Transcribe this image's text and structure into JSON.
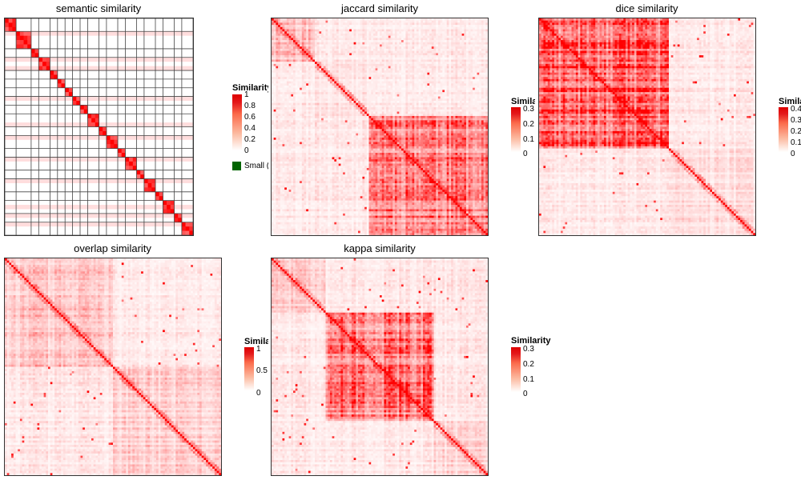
{
  "chart_data": [
    {
      "type": "heatmap",
      "title": "semantic similarity",
      "legend": {
        "title": "Similarity",
        "ticks": [
          "1",
          "0.8",
          "0.6",
          "0.4",
          "0.2",
          "0"
        ],
        "range": [
          0,
          1
        ],
        "extra_label": "Small (truncated)",
        "extra_color": "#006400"
      },
      "color_scale": [
        "#ffffff",
        "#ff0000"
      ],
      "diagonal_value": 1,
      "blocks": [
        [
          0,
          3
        ],
        [
          3,
          7
        ],
        [
          7,
          9
        ],
        [
          9,
          12
        ],
        [
          12,
          14
        ],
        [
          14,
          16
        ],
        [
          16,
          18
        ],
        [
          18,
          20
        ],
        [
          20,
          22
        ],
        [
          22,
          25
        ],
        [
          25,
          27
        ],
        [
          27,
          30
        ],
        [
          30,
          32
        ],
        [
          32,
          35
        ],
        [
          35,
          37
        ],
        [
          37,
          40
        ],
        [
          40,
          42
        ],
        [
          42,
          45
        ],
        [
          45,
          47
        ],
        [
          47,
          50
        ]
      ],
      "block_value": 0.15,
      "gridlines": true,
      "n": 50
    },
    {
      "type": "heatmap",
      "title": "jaccard similarity",
      "legend": {
        "title": "Similarity",
        "ticks": [
          "0.3",
          "0.2",
          "0.1",
          "0"
        ],
        "range": [
          0,
          0.3
        ]
      },
      "color_scale": [
        "#ffffff",
        "#ff0000"
      ],
      "diagonal_value": 0.3,
      "clusters": [
        [
          0,
          20,
          0.06
        ],
        [
          20,
          45,
          0.02
        ],
        [
          45,
          100,
          0.13
        ]
      ],
      "n": 100
    },
    {
      "type": "heatmap",
      "title": "dice similarity",
      "legend": {
        "title": "Similarity",
        "ticks": [
          "0.4",
          "0.3",
          "0.2",
          "0.1",
          "0"
        ],
        "range": [
          0,
          0.4
        ]
      },
      "color_scale": [
        "#ffffff",
        "#ff0000"
      ],
      "diagonal_value": 0.4,
      "clusters": [
        [
          0,
          60,
          0.24
        ],
        [
          60,
          100,
          0.03
        ]
      ],
      "n": 100
    },
    {
      "type": "heatmap",
      "title": "overlap similarity",
      "legend": {
        "title": "Similarity",
        "ticks": [
          "1",
          "0.5",
          "0"
        ],
        "range": [
          0,
          1
        ]
      },
      "color_scale": [
        "#ffffff",
        "#ff0000"
      ],
      "diagonal_value": 1,
      "clusters": [
        [
          0,
          50,
          0.16
        ],
        [
          50,
          100,
          0.12
        ]
      ],
      "n": 100
    },
    {
      "type": "heatmap",
      "title": "kappa similarity",
      "legend": {
        "title": "Similarity",
        "ticks": [
          "0.3",
          "0.2",
          "0.1",
          "0"
        ],
        "range": [
          0,
          0.3
        ]
      },
      "color_scale": [
        "#ffffff",
        "#ff0000"
      ],
      "diagonal_value": 0.3,
      "clusters": [
        [
          0,
          25,
          0.04
        ],
        [
          25,
          75,
          0.14
        ],
        [
          75,
          100,
          0.03
        ]
      ],
      "n": 100
    }
  ]
}
